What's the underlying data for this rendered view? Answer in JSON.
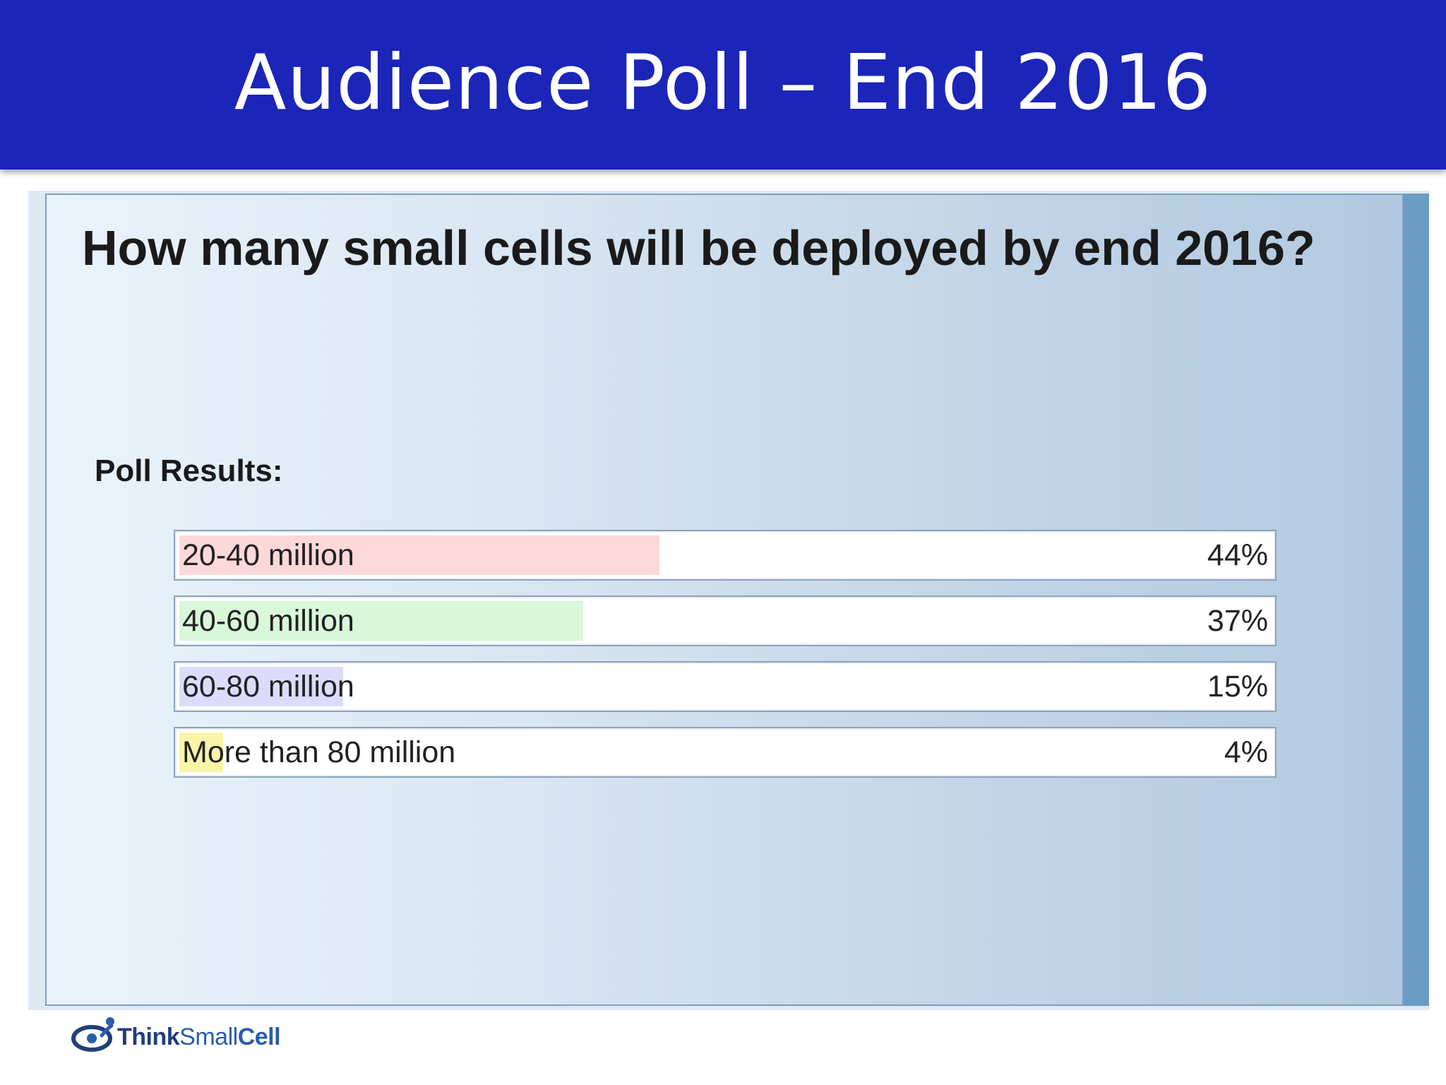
{
  "slide": {
    "title": "Audience Poll – End 2016"
  },
  "poll": {
    "question": "How many small cells will be deployed by end 2016?",
    "results_label": "Poll Results:"
  },
  "chart_data": {
    "type": "bar",
    "orientation": "horizontal",
    "categories": [
      "20-40 million",
      "40-60 million",
      "60-80 million",
      "More than 80 million"
    ],
    "values": [
      44,
      37,
      15,
      4
    ],
    "value_labels": [
      "44%",
      "37%",
      "15%",
      "4%"
    ],
    "unit": "%",
    "xlim": [
      0,
      100
    ],
    "colors": [
      "#fdd8d8",
      "#d9f7d9",
      "#dcdcfa",
      "#f8f4a8"
    ]
  },
  "logo": {
    "text_think": "Think",
    "text_small": "Small",
    "text_cell": "Cell",
    "icon": "thinksmallcell-logo-icon"
  }
}
